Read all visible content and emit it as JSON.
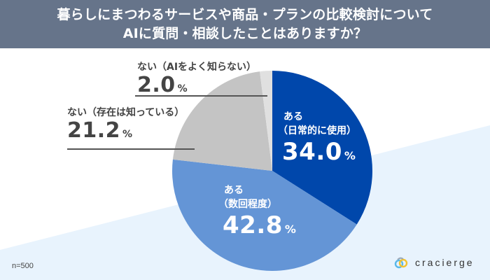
{
  "header": {
    "title_line1": "暮らしにまつわるサービスや商品・プランの比較検討について",
    "title_line2": "AIに質問・相談したことはありますか？"
  },
  "labels": [
    {
      "category": "ある",
      "category2": "（日常的に使用）",
      "value": "34.0",
      "unit": "%"
    },
    {
      "category": "ある",
      "category2": "（数回程度）",
      "value": "42.8",
      "unit": "%"
    },
    {
      "category": "ない（存在は知っている）",
      "value": "21.2",
      "unit": "%"
    },
    {
      "category": "ない（AIをよく知らない）",
      "value": "2.0",
      "unit": "%"
    }
  ],
  "footer": {
    "sample_size": "n=500",
    "brand": "cracierge"
  },
  "colors": {
    "header_bg": "#66748a",
    "daily": "#0047ab",
    "several": "#6495d6",
    "aware": "#c4c4c4",
    "unaware": "#e0e0e0",
    "background_accent": "#e8f3fd"
  },
  "chart_data": {
    "type": "pie",
    "title": "暮らしにまつわるサービスや商品・プランの比較検討について AIに質問・相談したことはありますか？",
    "categories": [
      "ある（日常的に使用）",
      "ある（数回程度）",
      "ない（存在は知っている）",
      "ない（AIをよく知らない）"
    ],
    "values": [
      34.0,
      42.8,
      21.2,
      2.0
    ],
    "colors": [
      "#0047ab",
      "#6495d6",
      "#c4c4c4",
      "#e0e0e0"
    ],
    "start_angle": "12 o'clock, clockwise",
    "note": "n=500",
    "legend": "none (direct labels)"
  }
}
